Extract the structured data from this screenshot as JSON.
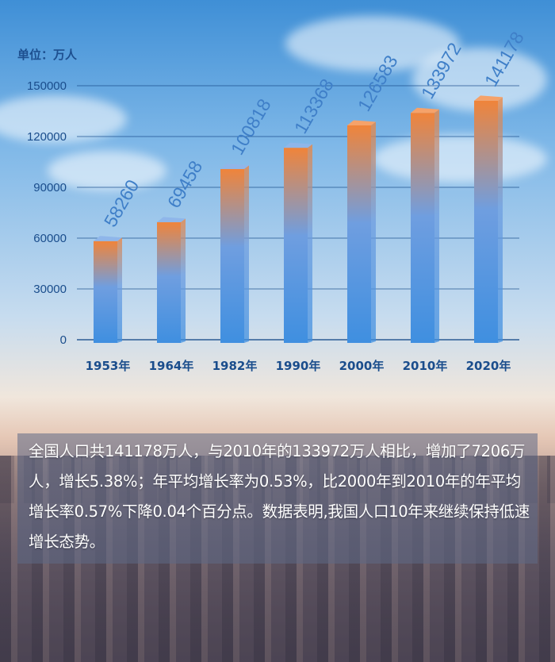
{
  "chart_data": {
    "type": "bar",
    "unit_label": "单位：万人",
    "categories": [
      "1953年",
      "1964年",
      "1982年",
      "1990年",
      "2000年",
      "2010年",
      "2020年"
    ],
    "values": [
      58260,
      69458,
      100818,
      113368,
      126583,
      133972,
      141178
    ],
    "value_labels": [
      "58260",
      "69458",
      "100818",
      "113368",
      "126583",
      "133972",
      "141178"
    ],
    "y_ticks": [
      "0",
      "30000",
      "60000",
      "90000",
      "120000",
      "150000"
    ],
    "ylim": [
      0,
      150000
    ],
    "colors": {
      "bar_low": "#3f8fe0",
      "bar_high": "#f0843a",
      "axis": "#1a4d8c"
    }
  },
  "summary_text": "全国人口共141178万人，与2010年的133972万人相比，增加了7206万人，增长5.38%；年平均增长率为0.53%，比2000年到2010年的年平均增长率0.57%下降0.04个百分点。数据表明,我国人口10年来继续保持低速增长态势。"
}
